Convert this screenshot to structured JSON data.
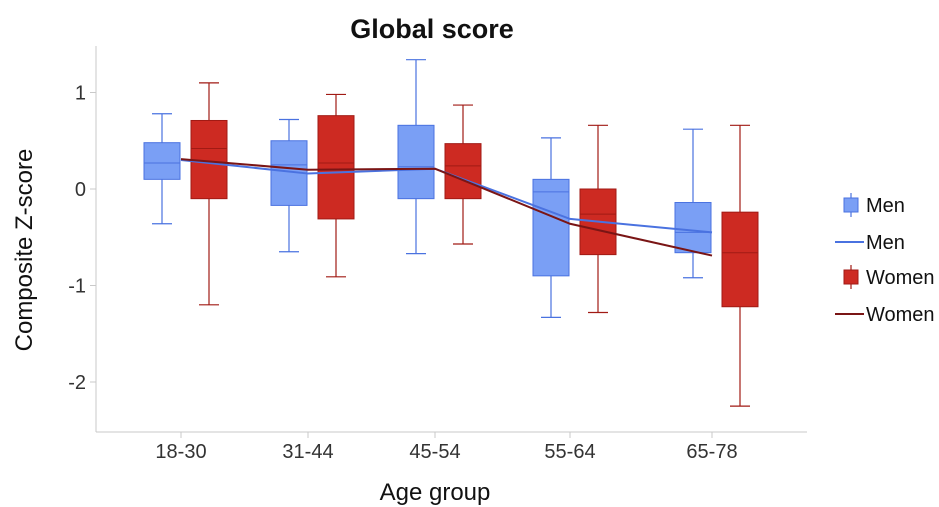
{
  "chart_data": {
    "type": "box",
    "title": "Global score",
    "xlabel": "Age group",
    "ylabel": "Composite Z-score",
    "categories": [
      "18-30",
      "31-44",
      "45-54",
      "55-64",
      "65-78"
    ],
    "ylim": [
      -2.5,
      1.5
    ],
    "yticks": [
      1,
      0,
      -1,
      -2
    ],
    "ytick_labels": [
      "1",
      "0",
      "-1",
      "-2"
    ],
    "grid": false,
    "legend_position": "right",
    "series": [
      {
        "name": "Men",
        "color": "#7a9ff5",
        "edge_color": "#4a72e0",
        "boxes": [
          {
            "whisker_low": -0.36,
            "q1": 0.1,
            "median": 0.27,
            "q3": 0.48,
            "whisker_high": 0.78
          },
          {
            "whisker_low": -0.65,
            "q1": -0.17,
            "median": 0.25,
            "q3": 0.5,
            "whisker_high": 0.72
          },
          {
            "whisker_low": -0.67,
            "q1": -0.1,
            "median": 0.23,
            "q3": 0.66,
            "whisker_high": 1.34
          },
          {
            "whisker_low": -1.33,
            "q1": -0.9,
            "median": -0.03,
            "q3": 0.1,
            "whisker_high": 0.53
          },
          {
            "whisker_low": -0.92,
            "q1": -0.66,
            "median": -0.45,
            "q3": -0.14,
            "whisker_high": 0.62
          }
        ],
        "trend": [
          0.3,
          0.16,
          0.21,
          -0.31,
          -0.45
        ]
      },
      {
        "name": "Women",
        "color": "#cd2a22",
        "edge_color": "#a11a14",
        "trend_color": "#7a1515",
        "boxes": [
          {
            "whisker_low": -1.2,
            "q1": -0.1,
            "median": 0.42,
            "q3": 0.71,
            "whisker_high": 1.1
          },
          {
            "whisker_low": -0.91,
            "q1": -0.31,
            "median": 0.27,
            "q3": 0.76,
            "whisker_high": 0.98
          },
          {
            "whisker_low": -0.57,
            "q1": -0.1,
            "median": 0.24,
            "q3": 0.47,
            "whisker_high": 0.87
          },
          {
            "whisker_low": -1.28,
            "q1": -0.68,
            "median": -0.26,
            "q3": 0.0,
            "whisker_high": 0.66
          },
          {
            "whisker_low": -2.25,
            "q1": -1.22,
            "median": -0.66,
            "q3": -0.24,
            "whisker_high": 0.66
          }
        ],
        "trend": [
          0.31,
          0.2,
          0.21,
          -0.36,
          -0.69
        ]
      }
    ],
    "legend": [
      {
        "label": "Men",
        "kind": "box"
      },
      {
        "label": "Men",
        "kind": "line"
      },
      {
        "label": "Women",
        "kind": "box"
      },
      {
        "label": "Women",
        "kind": "line"
      }
    ]
  }
}
